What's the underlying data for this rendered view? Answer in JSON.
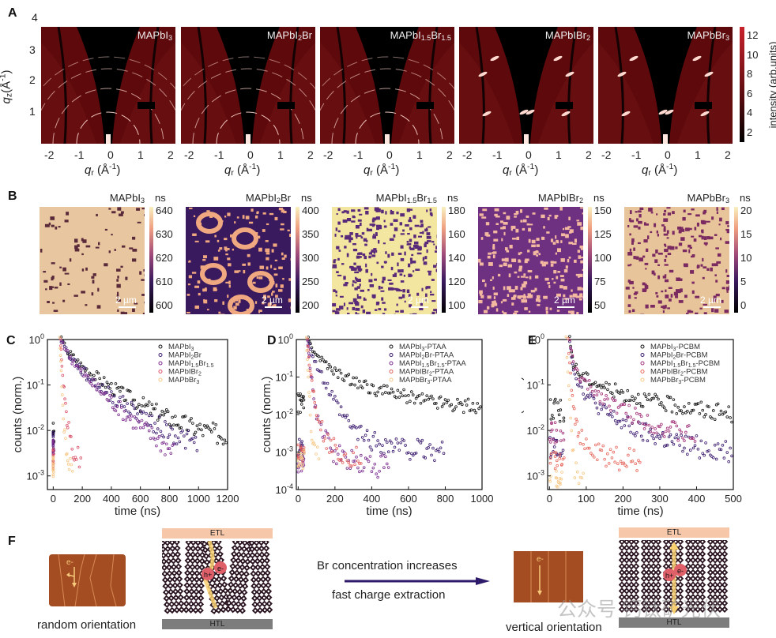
{
  "panels": {
    "A": {
      "label": "A",
      "ylabel": "q_z(Å^-1)",
      "xlabel": "q_r (Å^-1)",
      "ytick_labels": [
        "4",
        "3",
        "2",
        "1"
      ],
      "xtick_labels": [
        "-2",
        "-1",
        "0",
        "1",
        "2"
      ],
      "images": [
        {
          "title": "MAPbI3"
        },
        {
          "title": "MAPbI2Br"
        },
        {
          "title": "MAPbI1.5Br1.5"
        },
        {
          "title": "MAPbIBr2"
        },
        {
          "title": "MAPbBr3"
        }
      ],
      "colorbar": {
        "label": "intensity (arb.units)",
        "ticks": [
          "12",
          "10",
          "8",
          "6",
          "4",
          "2"
        ],
        "colors": [
          "#000000",
          "#c8222b"
        ]
      }
    },
    "B": {
      "label": "B",
      "unit": "ns",
      "scale_bar": "2 µm",
      "maps": [
        {
          "title": "MAPbI3",
          "ticks": [
            "640",
            "630",
            "620",
            "610",
            "600"
          ]
        },
        {
          "title": "MAPbI2Br",
          "ticks": [
            "400",
            "350",
            "300",
            "250",
            "200"
          ]
        },
        {
          "title": "MAPbI1.5Br1.5",
          "ticks": [
            "180",
            "160",
            "140",
            "120",
            "100"
          ]
        },
        {
          "title": "MAPbIBr2",
          "ticks": [
            "150",
            "125",
            "100",
            "75",
            "50"
          ]
        },
        {
          "title": "MAPbBr3",
          "ticks": [
            "20",
            "15",
            "10",
            "5",
            "0"
          ]
        }
      ]
    },
    "F": {
      "label": "F",
      "left_caption": "random orientation",
      "right_caption": "vertical orientation",
      "arrow_top": "Br concentration increases",
      "arrow_bottom": "fast charge extraction",
      "etl": "ETL",
      "htl": "HTL",
      "electron": "e-",
      "hole": "h+",
      "watermark": "公众号 钙钛矿光伏"
    }
  },
  "chart_data": [
    {
      "panel": "C",
      "type": "scatter",
      "title": "",
      "xlabel": "time (ns)",
      "ylabel": "counts (norm.)",
      "xlim": [
        -40,
        1200
      ],
      "ylim_log10": [
        -3.3,
        0
      ],
      "yscale": "log",
      "xticks": [
        0,
        200,
        400,
        600,
        800,
        1000,
        1200
      ],
      "yticks_exp": [
        0,
        -1,
        -2,
        -3
      ],
      "legend": "top-right",
      "series": [
        {
          "name": "MAPbI3",
          "color": "#111111",
          "x": [
            55,
            100,
            200,
            300,
            400,
            500,
            600,
            700,
            800,
            900,
            1000,
            1100,
            1200
          ],
          "y": [
            1.0,
            0.55,
            0.26,
            0.15,
            0.09,
            0.058,
            0.039,
            0.027,
            0.019,
            0.014,
            0.011,
            0.009,
            0.0075
          ]
        },
        {
          "name": "MAPbI2Br",
          "color": "#3a1a6e",
          "x": [
            55,
            100,
            200,
            300,
            400,
            500,
            600,
            700,
            800,
            900,
            1000
          ],
          "y": [
            1.0,
            0.5,
            0.2,
            0.1,
            0.058,
            0.035,
            0.022,
            0.014,
            0.0095,
            0.0065,
            0.0045
          ]
        },
        {
          "name": "MAPbI1.5Br1.5",
          "color": "#7b2d8e",
          "x": [
            55,
            100,
            200,
            300,
            400,
            500,
            600,
            700,
            800,
            840
          ],
          "y": [
            1.0,
            0.48,
            0.18,
            0.085,
            0.043,
            0.022,
            0.012,
            0.0068,
            0.0038,
            0.003
          ]
        },
        {
          "name": "MAPbIBr2",
          "color": "#d9536a",
          "x": [
            50,
            60,
            80,
            100,
            130,
            160,
            200
          ],
          "y": [
            1.0,
            0.3,
            0.05,
            0.012,
            0.004,
            0.0025,
            0.0018
          ]
        },
        {
          "name": "MAPbBr3",
          "color": "#f7c98a",
          "x": [
            45,
            55,
            70,
            90,
            110,
            140
          ],
          "y": [
            1.0,
            0.2,
            0.02,
            0.004,
            0.002,
            0.0012
          ]
        }
      ]
    },
    {
      "panel": "D",
      "type": "scatter",
      "title": "",
      "xlabel": "time (ns)",
      "ylabel": "counts (norm.)",
      "xlim": [
        -10,
        1000
      ],
      "ylim_log10": [
        -4,
        0
      ],
      "yscale": "log",
      "xticks": [
        0,
        200,
        400,
        600,
        800,
        1000
      ],
      "yticks_exp": [
        0,
        -1,
        -2,
        -3,
        -4
      ],
      "legend": "top-right",
      "series": [
        {
          "name": "MAPbI3-PTAA",
          "color": "#111111",
          "x": [
            55,
            80,
            120,
            200,
            300,
            400,
            500,
            600,
            700,
            800,
            900,
            1000
          ],
          "y": [
            1.0,
            0.55,
            0.3,
            0.13,
            0.075,
            0.05,
            0.038,
            0.03,
            0.025,
            0.021,
            0.018,
            0.016
          ]
        },
        {
          "name": "MAPbI2Br-PTAA",
          "color": "#3a1a6e",
          "x": [
            55,
            80,
            120,
            160,
            200,
            250,
            300,
            400,
            500,
            600,
            700,
            800
          ],
          "y": [
            1.0,
            0.35,
            0.12,
            0.05,
            0.02,
            0.008,
            0.004,
            0.002,
            0.0015,
            0.0012,
            0.0011,
            0.001
          ]
        },
        {
          "name": "MAPbI1.5Br1.5-PTAA",
          "color": "#7b2d8e",
          "x": [
            50,
            60,
            80,
            100,
            150,
            200,
            350,
            500
          ],
          "y": [
            1.0,
            0.3,
            0.05,
            0.01,
            0.002,
            0.0008,
            0.0005,
            0.0004
          ]
        },
        {
          "name": "MAPbIBr2-PTAA",
          "color": "#e0605e",
          "x": [
            50,
            60,
            80,
            100,
            130,
            170,
            250,
            350
          ],
          "y": [
            1.0,
            0.25,
            0.05,
            0.015,
            0.004,
            0.0015,
            0.0009,
            0.0007
          ]
        },
        {
          "name": "MAPbBr3-PTAA",
          "color": "#f7c98a",
          "x": [
            45,
            55,
            70,
            90,
            120
          ],
          "y": [
            1.0,
            0.1,
            0.005,
            0.001,
            0.0005
          ]
        }
      ]
    },
    {
      "panel": "E",
      "type": "scatter",
      "title": "",
      "xlabel": "time (ns)",
      "ylabel": "counts (norm.)",
      "xlim": [
        -5,
        500
      ],
      "ylim_log10": [
        -3.3,
        0
      ],
      "yscale": "log",
      "xticks": [
        0,
        100,
        200,
        300,
        400,
        500
      ],
      "yticks_exp": [
        0,
        -1,
        -2,
        -3
      ],
      "legend": "top-right",
      "series": [
        {
          "name": "MAPbI3-PCBM",
          "color": "#111111",
          "x": [
            55,
            65,
            80,
            100,
            150,
            200,
            250,
            300,
            350,
            400,
            450,
            500
          ],
          "y": [
            1.0,
            0.3,
            0.18,
            0.14,
            0.09,
            0.065,
            0.05,
            0.04,
            0.034,
            0.03,
            0.026,
            0.022
          ]
        },
        {
          "name": "MAPbI2Br-PCBM",
          "color": "#3a1a6e",
          "x": [
            55,
            65,
            80,
            100,
            150,
            200,
            250,
            300,
            350,
            400,
            450,
            500
          ],
          "y": [
            1.0,
            0.22,
            0.11,
            0.06,
            0.025,
            0.014,
            0.009,
            0.007,
            0.005,
            0.0045,
            0.004,
            0.0035
          ]
        },
        {
          "name": "MAPbI1.5Br1.5-PCBM",
          "color": "#a0307a",
          "x": [
            55,
            65,
            80,
            100,
            150,
            200,
            250,
            300,
            350,
            400
          ],
          "y": [
            1.0,
            0.28,
            0.16,
            0.1,
            0.05,
            0.028,
            0.018,
            0.012,
            0.009,
            0.007
          ]
        },
        {
          "name": "MAPbIBr2-PCBM",
          "color": "#e66a5f",
          "x": [
            50,
            60,
            70,
            80,
            100,
            130,
            170,
            210,
            250
          ],
          "y": [
            1.0,
            0.1,
            0.02,
            0.008,
            0.004,
            0.003,
            0.0025,
            0.0022,
            0.002
          ]
        },
        {
          "name": "MAPbBr3-PCBM",
          "color": "#f7c98a",
          "x": [
            45,
            55,
            65,
            80,
            100
          ],
          "y": [
            1.0,
            0.05,
            0.002,
            0.0008,
            0.0006
          ]
        }
      ]
    }
  ]
}
